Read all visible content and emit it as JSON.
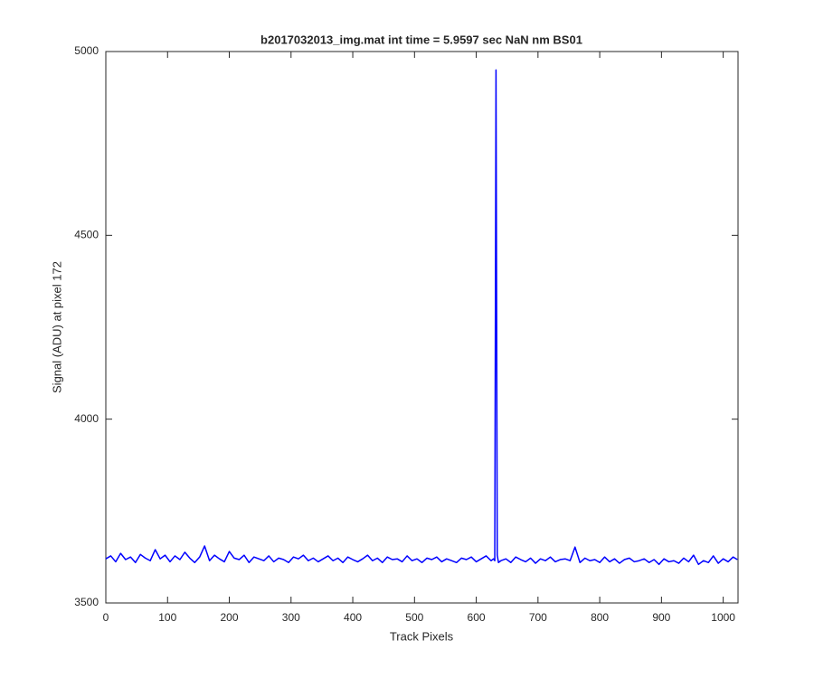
{
  "chart_data": {
    "type": "line",
    "title": "b2017032013_img.mat int time = 5.9597 sec  NaN nm BS01",
    "x_label": "Track Pixels",
    "y_label": "Signal (ADU) at pixel 172",
    "x": [
      0,
      8,
      16,
      24,
      32,
      40,
      48,
      56,
      64,
      72,
      80,
      88,
      96,
      104,
      112,
      120,
      128,
      136,
      144,
      152,
      160,
      168,
      176,
      184,
      192,
      200,
      208,
      216,
      224,
      232,
      240,
      248,
      256,
      264,
      272,
      280,
      288,
      296,
      304,
      312,
      320,
      328,
      336,
      344,
      352,
      360,
      368,
      376,
      384,
      392,
      400,
      408,
      416,
      424,
      432,
      440,
      448,
      456,
      464,
      472,
      480,
      488,
      496,
      504,
      512,
      520,
      528,
      536,
      544,
      552,
      560,
      568,
      576,
      584,
      592,
      600,
      608,
      616,
      624,
      628,
      630,
      632,
      634,
      636,
      640,
      648,
      656,
      664,
      672,
      680,
      688,
      696,
      704,
      712,
      720,
      728,
      736,
      744,
      752,
      760,
      768,
      776,
      784,
      792,
      800,
      808,
      816,
      824,
      832,
      840,
      848,
      856,
      864,
      872,
      880,
      888,
      896,
      904,
      912,
      920,
      928,
      936,
      944,
      952,
      960,
      968,
      976,
      984,
      992,
      1000,
      1008,
      1016,
      1023
    ],
    "series": [
      {
        "name": "Signal",
        "color": "#0000ff",
        "values": [
          3620,
          3628,
          3612,
          3635,
          3618,
          3625,
          3610,
          3632,
          3622,
          3615,
          3645,
          3620,
          3630,
          3612,
          3628,
          3618,
          3638,
          3622,
          3610,
          3625,
          3655,
          3615,
          3630,
          3620,
          3612,
          3640,
          3622,
          3618,
          3630,
          3610,
          3625,
          3620,
          3615,
          3628,
          3612,
          3622,
          3618,
          3610,
          3625,
          3620,
          3630,
          3615,
          3622,
          3612,
          3620,
          3628,
          3615,
          3622,
          3610,
          3625,
          3618,
          3612,
          3620,
          3630,
          3615,
          3622,
          3610,
          3625,
          3618,
          3620,
          3612,
          3628,
          3615,
          3620,
          3610,
          3622,
          3618,
          3625,
          3612,
          3620,
          3615,
          3610,
          3622,
          3618,
          3625,
          3612,
          3620,
          3628,
          3615,
          3620,
          3615,
          4950,
          3630,
          3610,
          3615,
          3620,
          3610,
          3625,
          3618,
          3612,
          3622,
          3608,
          3620,
          3615,
          3625,
          3612,
          3618,
          3620,
          3615,
          3652,
          3610,
          3622,
          3615,
          3618,
          3610,
          3625,
          3612,
          3620,
          3608,
          3618,
          3622,
          3612,
          3615,
          3620,
          3610,
          3618,
          3605,
          3620,
          3612,
          3615,
          3608,
          3622,
          3612,
          3630,
          3605,
          3615,
          3610,
          3628,
          3608,
          3620,
          3612,
          3625,
          3618
        ]
      }
    ],
    "xlim": [
      0,
      1024
    ],
    "ylim": [
      3500,
      5000
    ],
    "xticks": [
      0,
      100,
      200,
      300,
      400,
      500,
      600,
      700,
      800,
      900,
      1000
    ],
    "yticks": [
      3500,
      4000,
      4500,
      5000
    ]
  }
}
